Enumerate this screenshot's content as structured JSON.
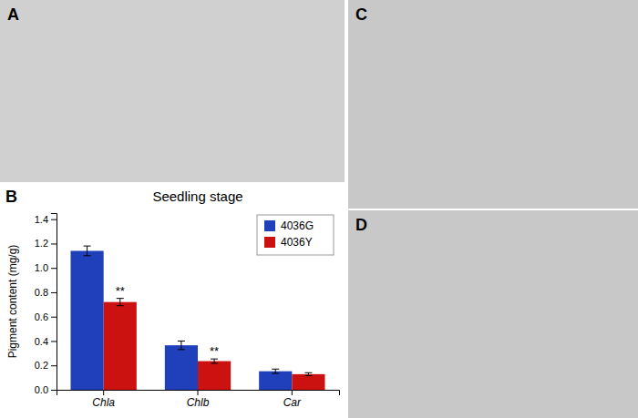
{
  "chart_data": {
    "type": "bar",
    "title": "Seedling stage",
    "y_label": "Pigment content (mg/g)",
    "categories": [
      "Chla",
      "Chlb",
      "Car"
    ],
    "series": [
      {
        "name": "4036G",
        "color": "#2040BB",
        "values": [
          1.14,
          0.365,
          0.152
        ],
        "errors": [
          0.04,
          0.035,
          0.018
        ]
      },
      {
        "name": "4036Y",
        "color": "#CC1111",
        "values": [
          0.72,
          0.235,
          0.128
        ],
        "errors": [
          0.03,
          0.018,
          0.012
        ]
      }
    ],
    "ylim": [
      0,
      1.45
    ],
    "yticks": [
      {
        "value": 0.0,
        "label": "0.0"
      },
      0.2,
      0.4,
      0.6,
      0.8,
      {
        "value": 1.0,
        "label": "1.0"
      },
      1.2,
      1.4
    ],
    "grid": false,
    "legend": "upper right",
    "annotations": [
      {
        "text": "A"
      },
      {
        "text": "B"
      },
      {
        "text": "C"
      },
      {
        "text": "D"
      },
      {
        "text": "**",
        "series": "4036Y",
        "category": "Chla"
      },
      {
        "text": "**",
        "series": "4036Y",
        "category": "Chlb"
      }
    ]
  }
}
